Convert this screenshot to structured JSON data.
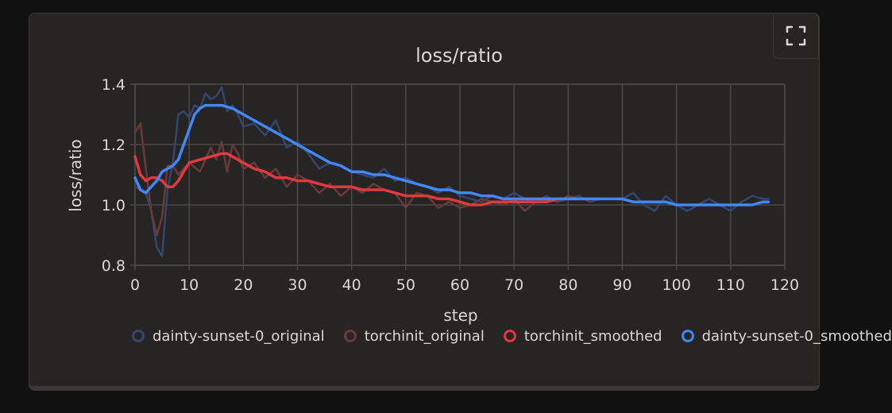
{
  "chart_data": {
    "type": "line",
    "title": "loss/ratio",
    "xlabel": "step",
    "ylabel": "loss/ratio",
    "xlim": [
      0,
      120
    ],
    "ylim": [
      0.8,
      1.4
    ],
    "xticks": [
      0,
      10,
      20,
      30,
      40,
      50,
      60,
      70,
      80,
      90,
      100,
      110,
      120
    ],
    "yticks": [
      0.8,
      1.0,
      1.2,
      1.4
    ],
    "xtick_labels": [
      "0",
      "10",
      "20",
      "30",
      "40",
      "50",
      "60",
      "70",
      "80",
      "90",
      "100",
      "110",
      "120"
    ],
    "ytick_labels": [
      "0.8",
      "1.0",
      "1.2",
      "1.4"
    ],
    "grid": true,
    "legend_position": "bottom",
    "series": [
      {
        "name": "dainty-sunset-0_original",
        "color": "#34466e",
        "x": [
          0,
          2,
          3,
          4,
          5,
          6,
          7,
          8,
          9,
          10,
          11,
          12,
          13,
          14,
          15,
          16,
          17,
          18,
          19,
          20,
          22,
          24,
          26,
          28,
          30,
          32,
          34,
          36,
          38,
          40,
          42,
          44,
          46,
          48,
          50,
          52,
          54,
          56,
          58,
          60,
          62,
          64,
          66,
          68,
          70,
          72,
          74,
          76,
          78,
          80,
          82,
          84,
          86,
          88,
          90,
          92,
          94,
          96,
          98,
          100,
          102,
          104,
          106,
          108,
          110,
          112,
          114,
          116,
          117
        ],
        "y": [
          1.06,
          1.04,
          0.98,
          0.86,
          0.83,
          1.05,
          1.14,
          1.3,
          1.31,
          1.29,
          1.33,
          1.32,
          1.37,
          1.35,
          1.36,
          1.39,
          1.31,
          1.33,
          1.3,
          1.26,
          1.27,
          1.23,
          1.28,
          1.19,
          1.21,
          1.17,
          1.12,
          1.14,
          1.13,
          1.11,
          1.1,
          1.09,
          1.12,
          1.08,
          1.09,
          1.07,
          1.06,
          1.04,
          1.06,
          1.03,
          1.02,
          1.01,
          1.03,
          1.02,
          1.04,
          1.02,
          1.01,
          1.03,
          1.01,
          1.02,
          1.03,
          1.01,
          1.02,
          1.02,
          1.02,
          1.04,
          1.0,
          0.98,
          1.03,
          1.0,
          0.98,
          1.0,
          1.02,
          1.0,
          0.98,
          1.01,
          1.03,
          1.02,
          1.02
        ]
      },
      {
        "name": "torchinit_original",
        "color": "#6a3a3a",
        "x": [
          0,
          1,
          2,
          3,
          4,
          5,
          6,
          7,
          8,
          10,
          12,
          14,
          15,
          16,
          17,
          18,
          19,
          20,
          22,
          24,
          26,
          28,
          30,
          32,
          34,
          36,
          38,
          40,
          42,
          44,
          46,
          48,
          50,
          52,
          54,
          56,
          58,
          60,
          62,
          64,
          66,
          68,
          70,
          72,
          74,
          76,
          78,
          80,
          82,
          84
        ],
        "y": [
          1.24,
          1.27,
          1.12,
          0.98,
          0.9,
          0.96,
          1.13,
          1.13,
          1.1,
          1.14,
          1.11,
          1.19,
          1.15,
          1.21,
          1.11,
          1.2,
          1.17,
          1.12,
          1.14,
          1.09,
          1.12,
          1.06,
          1.1,
          1.08,
          1.04,
          1.07,
          1.03,
          1.06,
          1.04,
          1.07,
          1.05,
          1.04,
          0.99,
          1.04,
          1.03,
          0.99,
          1.01,
          0.99,
          1.0,
          1.02,
          1.01,
          1.0,
          1.02,
          0.98,
          1.01,
          1.02,
          1.01,
          1.03,
          1.02,
          1.02
        ]
      },
      {
        "name": "torchinit_smoothed",
        "color": "#e0393e",
        "x": [
          0,
          1,
          2,
          3,
          4,
          5,
          6,
          7,
          8,
          9,
          10,
          12,
          14,
          16,
          17,
          18,
          20,
          22,
          24,
          26,
          28,
          30,
          32,
          34,
          36,
          38,
          40,
          42,
          44,
          46,
          48,
          50,
          52,
          54,
          56,
          58,
          60,
          62,
          64,
          66,
          68,
          70,
          72,
          74,
          76,
          78,
          80,
          82,
          84
        ],
        "y": [
          1.16,
          1.1,
          1.08,
          1.09,
          1.09,
          1.08,
          1.06,
          1.06,
          1.08,
          1.11,
          1.14,
          1.15,
          1.16,
          1.17,
          1.17,
          1.16,
          1.14,
          1.12,
          1.11,
          1.09,
          1.09,
          1.08,
          1.08,
          1.07,
          1.06,
          1.06,
          1.06,
          1.05,
          1.05,
          1.05,
          1.04,
          1.03,
          1.03,
          1.03,
          1.02,
          1.02,
          1.01,
          1.0,
          1.0,
          1.01,
          1.01,
          1.01,
          1.01,
          1.01,
          1.01,
          1.02,
          1.02,
          1.02,
          1.02
        ]
      },
      {
        "name": "dainty-sunset-0_smoothed",
        "color": "#4287f5",
        "x": [
          0,
          1,
          2,
          3,
          4,
          5,
          6,
          7,
          8,
          9,
          10,
          11,
          12,
          13,
          14,
          16,
          18,
          20,
          22,
          24,
          26,
          28,
          30,
          32,
          34,
          36,
          38,
          40,
          42,
          44,
          46,
          48,
          50,
          52,
          54,
          56,
          58,
          60,
          62,
          64,
          66,
          68,
          70,
          72,
          74,
          76,
          78,
          80,
          82,
          84,
          86,
          88,
          90,
          92,
          94,
          96,
          98,
          100,
          102,
          104,
          106,
          108,
          110,
          112,
          114,
          116,
          117
        ],
        "y": [
          1.09,
          1.05,
          1.04,
          1.06,
          1.08,
          1.11,
          1.12,
          1.13,
          1.15,
          1.2,
          1.25,
          1.3,
          1.32,
          1.33,
          1.33,
          1.33,
          1.32,
          1.3,
          1.28,
          1.26,
          1.24,
          1.22,
          1.2,
          1.18,
          1.16,
          1.14,
          1.13,
          1.11,
          1.11,
          1.1,
          1.1,
          1.09,
          1.08,
          1.07,
          1.06,
          1.05,
          1.05,
          1.04,
          1.04,
          1.03,
          1.03,
          1.02,
          1.02,
          1.02,
          1.02,
          1.02,
          1.02,
          1.02,
          1.02,
          1.02,
          1.02,
          1.02,
          1.02,
          1.01,
          1.01,
          1.01,
          1.01,
          1.0,
          1.0,
          1.0,
          1.0,
          1.0,
          1.0,
          1.0,
          1.0,
          1.01,
          1.01
        ]
      }
    ]
  },
  "toolbar": {
    "expand_icon": "expand-icon"
  },
  "colors": {
    "panel_bg": "#262524",
    "grid": "#4a4948",
    "text": "#d8d8d8"
  }
}
